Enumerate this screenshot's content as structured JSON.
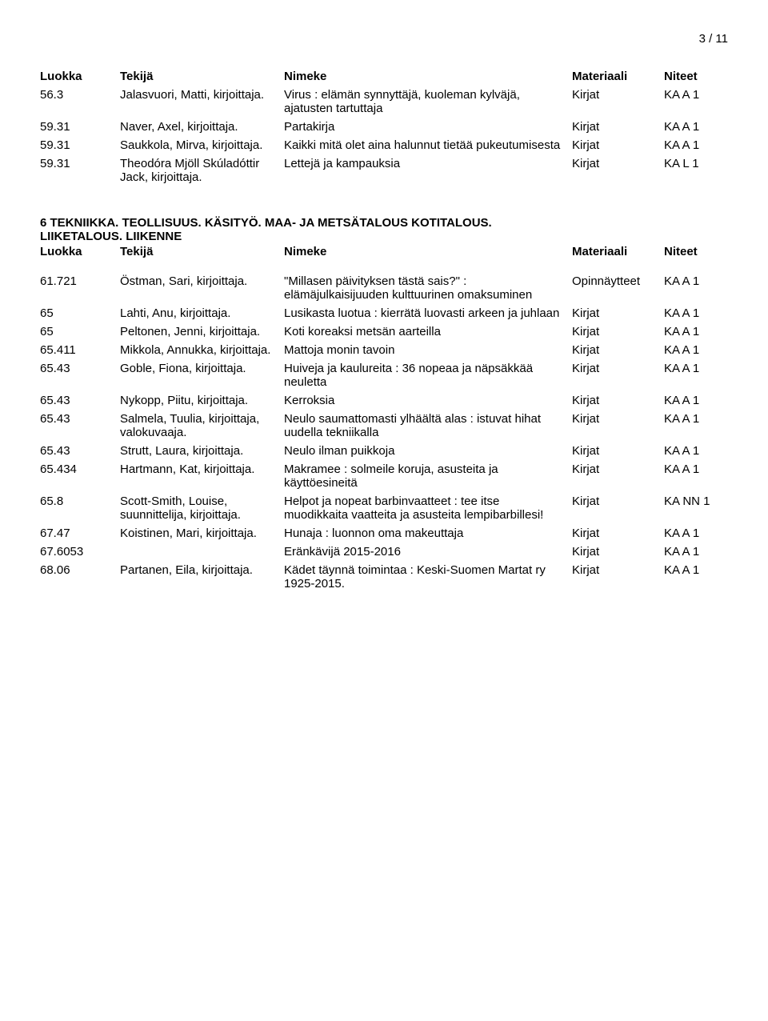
{
  "page_number": "3 / 11",
  "columns": {
    "luokka": "Luokka",
    "tekija": "Tekijä",
    "nimeke": "Nimeke",
    "materiaali": "Materiaali",
    "niteet": "Niteet"
  },
  "section1_rows": [
    {
      "luokka": "56.3",
      "tekija": "Jalasvuori, Matti, kirjoittaja.",
      "nimeke": "Virus : elämän synnyttäjä, kuoleman kylväjä, ajatusten tartuttaja",
      "materiaali": "Kirjat",
      "niteet": "KA A 1"
    },
    {
      "luokka": "59.31",
      "tekija": "Naver, Axel, kirjoittaja.",
      "nimeke": "Partakirja",
      "materiaali": "Kirjat",
      "niteet": "KA A 1"
    },
    {
      "luokka": "59.31",
      "tekija": "Saukkola, Mirva, kirjoittaja.",
      "nimeke": "Kaikki mitä olet aina halunnut tietää pukeutumisesta",
      "materiaali": "Kirjat",
      "niteet": "KA A 1"
    },
    {
      "luokka": "59.31",
      "tekija": "Theodóra Mjöll Skúladóttir Jack, kirjoittaja.",
      "nimeke": "Lettejä ja kampauksia",
      "materiaali": "Kirjat",
      "niteet": "KA L 1"
    }
  ],
  "section2_heading_line1": "6 TEKNIIKKA. TEOLLISUUS. KÄSITYÖ. MAA- JA METSÄTALOUS KOTITALOUS.",
  "section2_heading_line2": "LIIKETALOUS. LIIKENNE",
  "section2_rows": [
    {
      "luokka": "61.721",
      "tekija": "Östman, Sari, kirjoittaja.",
      "nimeke": "\"Millasen päivityksen tästä sais?\" : elämäjulkaisijuuden kulttuurinen omaksuminen",
      "materiaali": "Opinnäytteet",
      "niteet": "KA A 1"
    },
    {
      "luokka": "65",
      "tekija": "Lahti, Anu, kirjoittaja.",
      "nimeke": "Lusikasta luotua : kierrätä luovasti arkeen ja juhlaan",
      "materiaali": "Kirjat",
      "niteet": "KA A 1"
    },
    {
      "luokka": "65",
      "tekija": "Peltonen, Jenni, kirjoittaja.",
      "nimeke": "Koti koreaksi metsän aarteilla",
      "materiaali": "Kirjat",
      "niteet": "KA A 1"
    },
    {
      "luokka": "65.411",
      "tekija": "Mikkola, Annukka, kirjoittaja.",
      "nimeke": "Mattoja monin tavoin",
      "materiaali": "Kirjat",
      "niteet": "KA A 1"
    },
    {
      "luokka": "65.43",
      "tekija": "Goble, Fiona, kirjoittaja.",
      "nimeke": "Huiveja ja kaulureita : 36 nopeaa ja näpsäkkää neuletta",
      "materiaali": "Kirjat",
      "niteet": "KA A 1"
    },
    {
      "luokka": "65.43",
      "tekija": "Nykopp, Piitu, kirjoittaja.",
      "nimeke": "Kerroksia",
      "materiaali": "Kirjat",
      "niteet": "KA A 1"
    },
    {
      "luokka": "65.43",
      "tekija": "Salmela, Tuulia, kirjoittaja, valokuvaaja.",
      "nimeke": "Neulo saumattomasti ylhäältä alas : istuvat hihat uudella tekniikalla",
      "materiaali": "Kirjat",
      "niteet": "KA A 1"
    },
    {
      "luokka": "65.43",
      "tekija": "Strutt, Laura, kirjoittaja.",
      "nimeke": "Neulo ilman puikkoja",
      "materiaali": "Kirjat",
      "niteet": "KA A 1"
    },
    {
      "luokka": "65.434",
      "tekija": "Hartmann, Kat, kirjoittaja.",
      "nimeke": "Makramee : solmeile koruja, asusteita ja käyttöesineitä",
      "materiaali": "Kirjat",
      "niteet": "KA A 1"
    },
    {
      "luokka": "65.8",
      "tekija": "Scott-Smith, Louise, suunnittelija, kirjoittaja.",
      "nimeke": "Helpot ja nopeat barbinvaatteet : tee itse muodikkaita vaatteita ja asusteita lempibarbillesi!",
      "materiaali": "Kirjat",
      "niteet": "KA NN 1"
    },
    {
      "luokka": "67.47",
      "tekija": "Koistinen, Mari, kirjoittaja.",
      "nimeke": "Hunaja : luonnon oma makeuttaja",
      "materiaali": "Kirjat",
      "niteet": "KA A 1"
    },
    {
      "luokka": "67.6053",
      "tekija": "",
      "nimeke": "Eränkävijä 2015-2016",
      "materiaali": "Kirjat",
      "niteet": "KA A 1"
    },
    {
      "luokka": "68.06",
      "tekija": "Partanen, Eila, kirjoittaja.",
      "nimeke": "Kädet täynnä toimintaa : Keski-Suomen Martat ry 1925-2015.",
      "materiaali": "Kirjat",
      "niteet": "KA A 1"
    }
  ]
}
